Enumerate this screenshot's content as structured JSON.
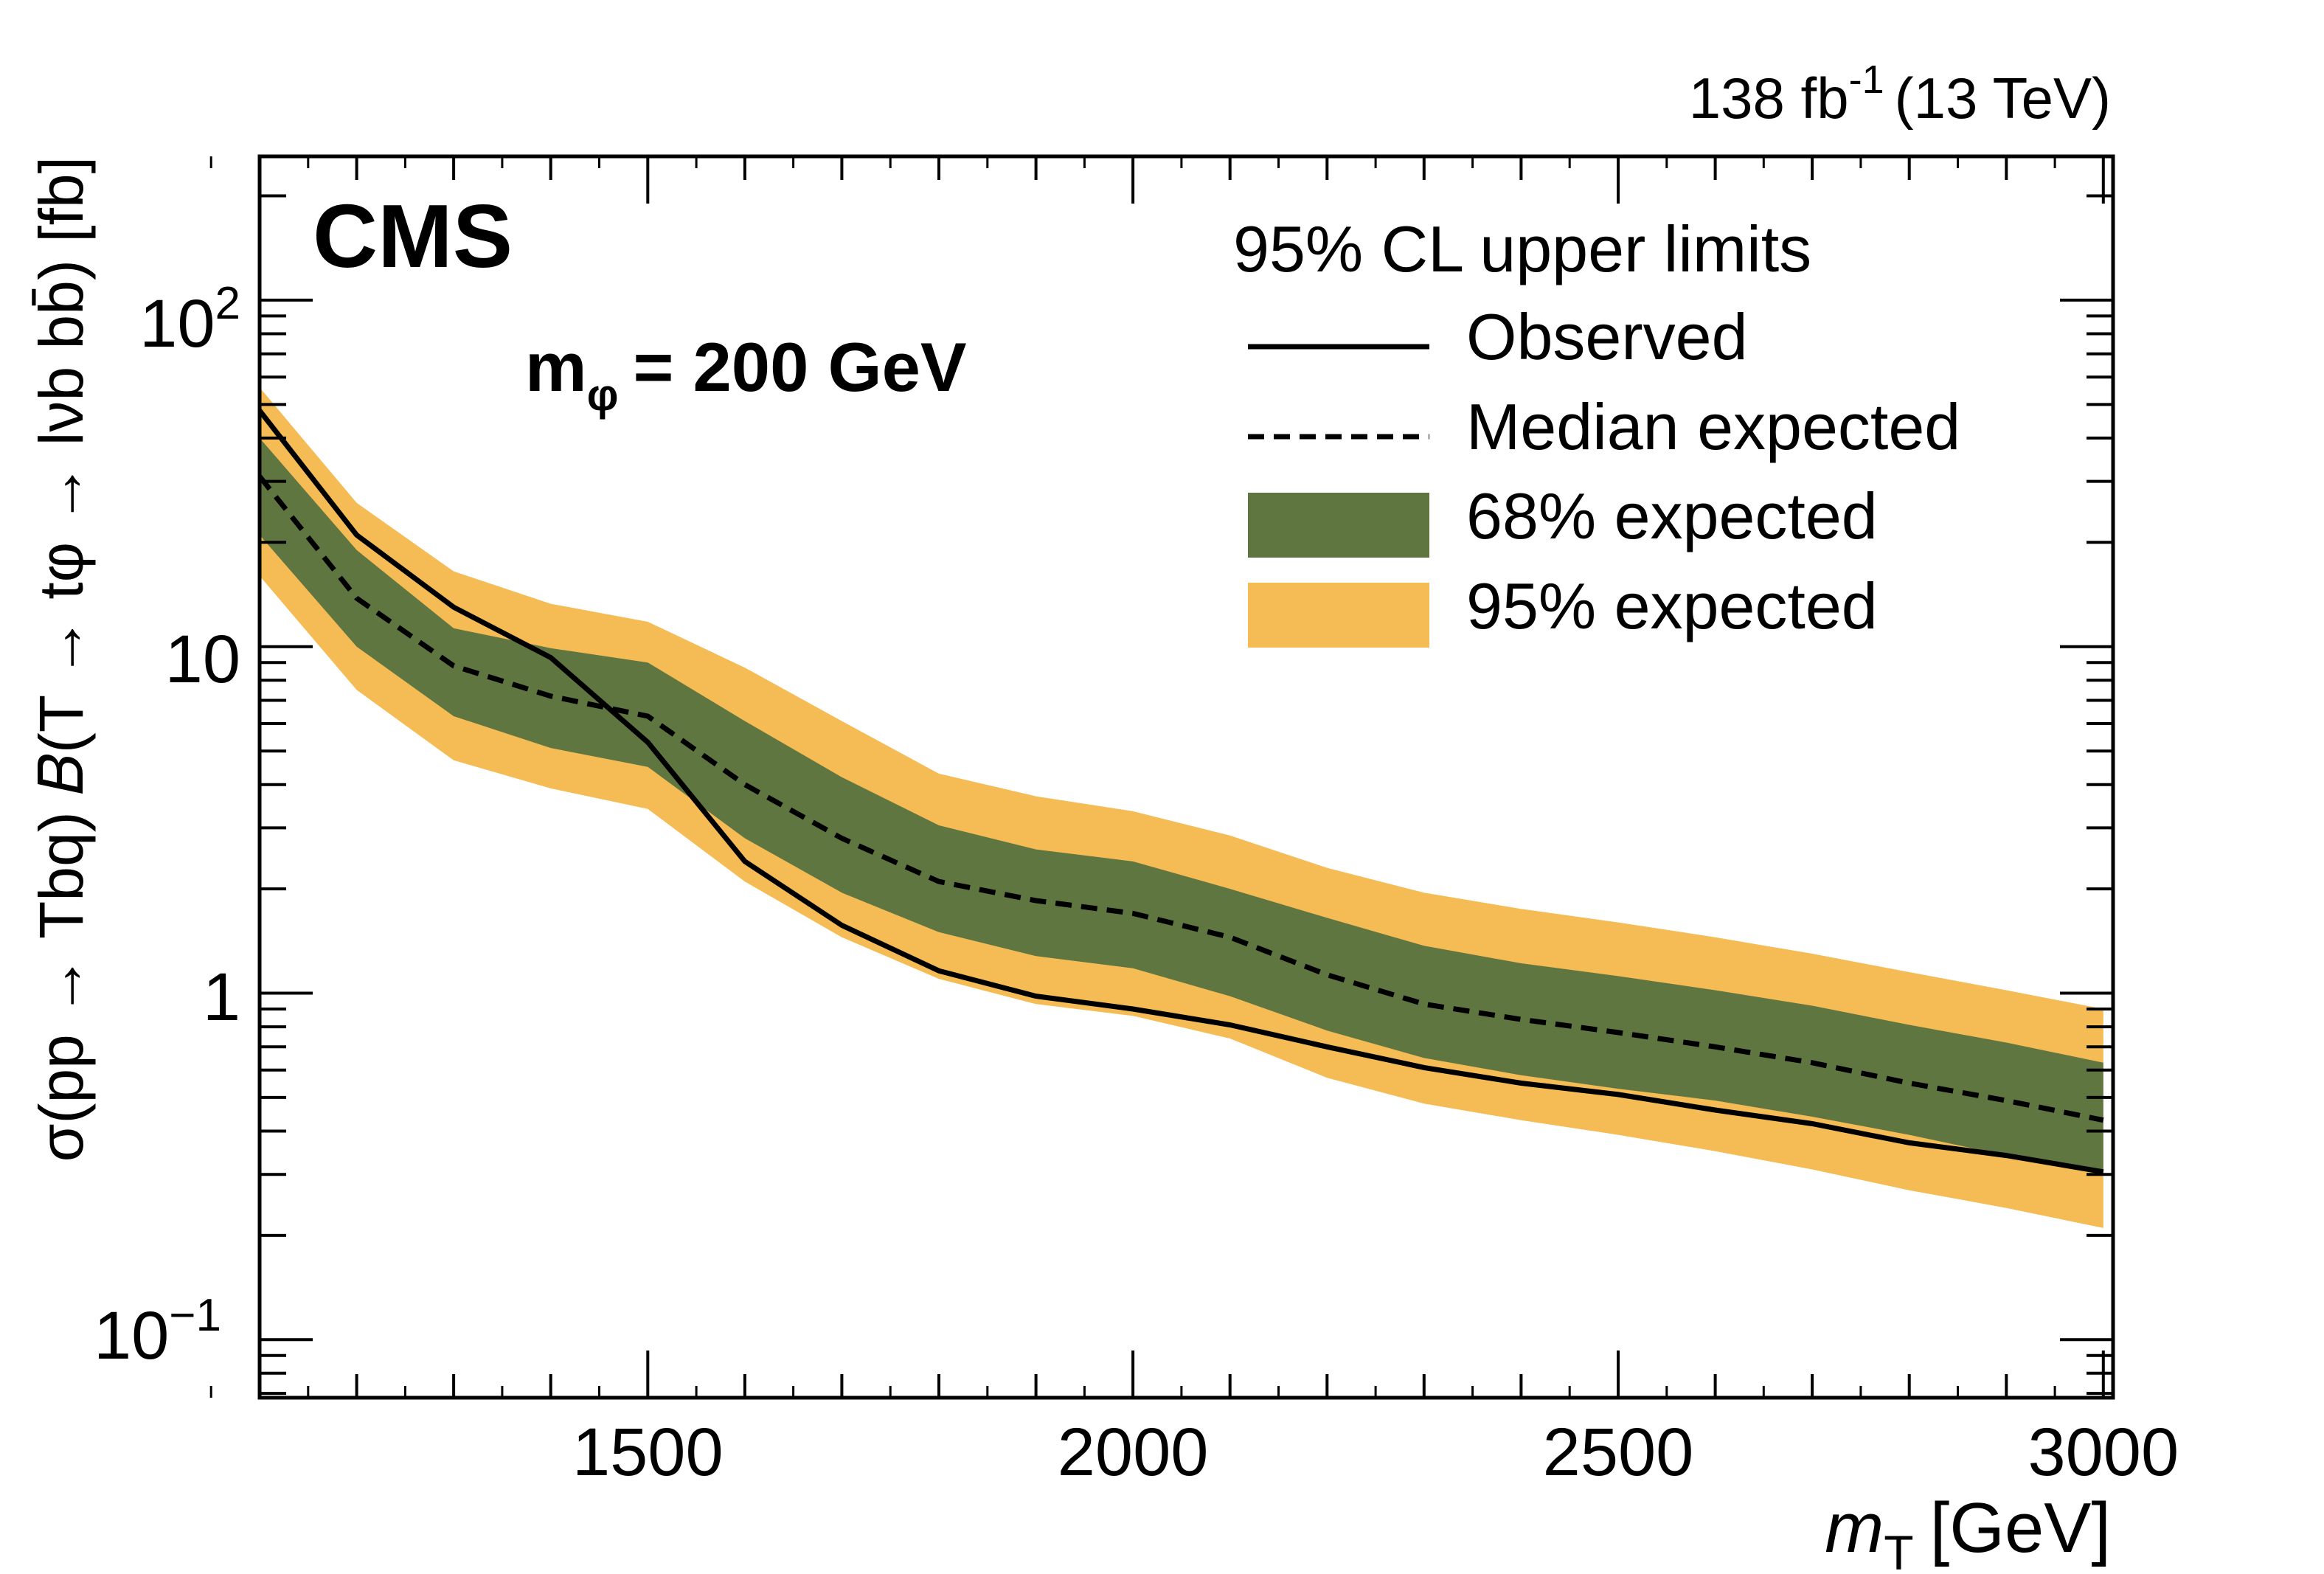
{
  "header": {
    "lumi_prefix": "138 fb",
    "lumi_exp": "-1",
    "lumi_suffix": "(13 TeV)",
    "experiment": "CMS",
    "mass_label_main": "m",
    "mass_label_sub": "φ",
    "mass_label_value": "= 200 GeV"
  },
  "legend": {
    "title": "95% CL upper limits",
    "observed": "Observed",
    "median": "Median expected",
    "band68": "68% expected",
    "band95": "95% expected"
  },
  "colors": {
    "band68": "#607641",
    "band95": "#F5BB54",
    "line": "#000000"
  },
  "chart_data": {
    "type": "line",
    "xlabel_main": "m",
    "xlabel_sub": "T",
    "xlabel_unit": "[GeV]",
    "ylabel": "σ(pp → Tbq) 𝐵(T → tφ → lνb bb̄) [fb]",
    "xlim": [
      1100,
      3010
    ],
    "ylim": [
      0.068,
      260
    ],
    "yscale": "log",
    "x_tick_labels": [
      "1500",
      "2000",
      "2500",
      "3000"
    ],
    "x_tick_values": [
      1500,
      2000,
      2500,
      3000
    ],
    "y_tick_labels": [
      {
        "value": 0.1,
        "base": "10",
        "exp": "−1"
      },
      {
        "value": 1,
        "base": "1",
        "exp": ""
      },
      {
        "value": 10,
        "base": "10",
        "exp": ""
      },
      {
        "value": 100,
        "base": "10",
        "exp": "2"
      }
    ],
    "x": [
      1100,
      1200,
      1300,
      1400,
      1500,
      1600,
      1700,
      1800,
      1900,
      2000,
      2100,
      2200,
      2300,
      2400,
      2500,
      2600,
      2700,
      2800,
      2900,
      3000
    ],
    "observed": [
      48,
      21,
      13,
      9.3,
      5.3,
      2.4,
      1.57,
      1.16,
      0.98,
      0.9,
      0.81,
      0.7,
      0.61,
      0.55,
      0.51,
      0.46,
      0.42,
      0.37,
      0.34,
      0.305
    ],
    "median": [
      31,
      13.8,
      8.8,
      7.2,
      6.3,
      4.0,
      2.8,
      2.1,
      1.85,
      1.7,
      1.45,
      1.13,
      0.93,
      0.84,
      0.77,
      0.7,
      0.63,
      0.55,
      0.49,
      0.43
    ],
    "band68_low": [
      21,
      10,
      6.3,
      5.1,
      4.5,
      2.8,
      1.95,
      1.5,
      1.28,
      1.18,
      0.98,
      0.78,
      0.65,
      0.58,
      0.53,
      0.49,
      0.44,
      0.39,
      0.34,
      0.3
    ],
    "band68_high": [
      40,
      19,
      11.3,
      9.9,
      9.0,
      6.1,
      4.2,
      3.05,
      2.6,
      2.4,
      2.0,
      1.65,
      1.37,
      1.22,
      1.12,
      1.02,
      0.92,
      0.81,
      0.72,
      0.63
    ],
    "band95_low": [
      16,
      7.5,
      4.7,
      3.9,
      3.4,
      2.1,
      1.45,
      1.1,
      0.93,
      0.86,
      0.74,
      0.57,
      0.48,
      0.43,
      0.39,
      0.35,
      0.31,
      0.27,
      0.24,
      0.21
    ],
    "band95_high": [
      56,
      26,
      16.5,
      13.3,
      11.8,
      8.7,
      6.1,
      4.3,
      3.7,
      3.35,
      2.85,
      2.3,
      1.95,
      1.75,
      1.6,
      1.45,
      1.3,
      1.15,
      1.02,
      0.9
    ]
  }
}
